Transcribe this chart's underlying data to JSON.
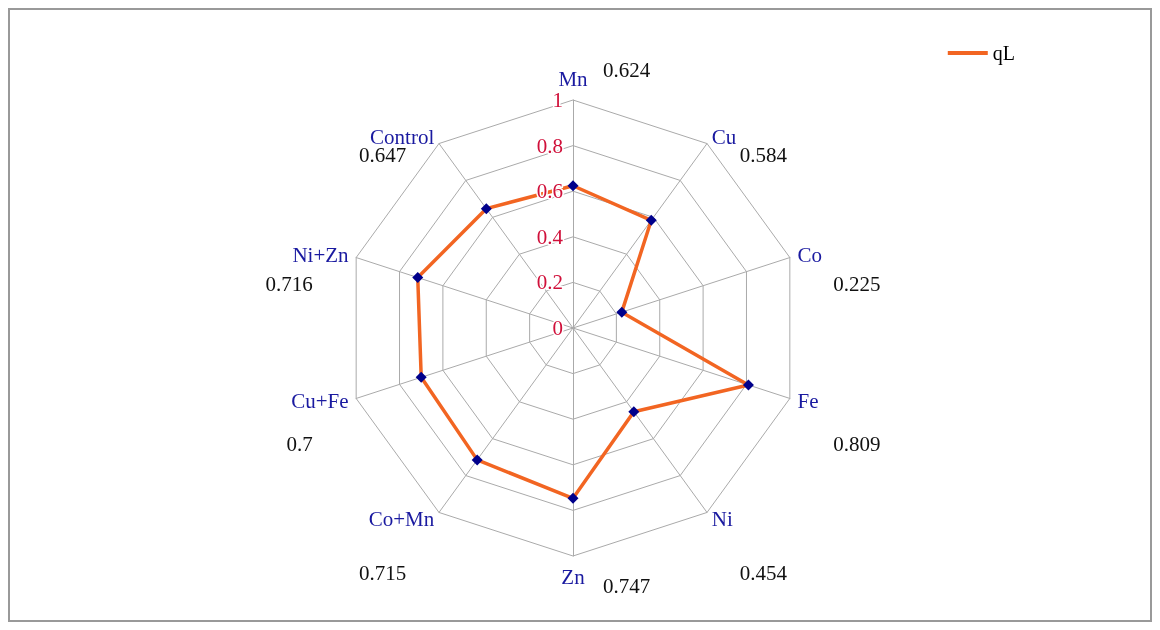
{
  "chart_data": {
    "type": "radar",
    "categories": [
      "Mn",
      "Cu",
      "Co",
      "Fe",
      "Ni",
      "Zn",
      "Co+Mn",
      "Cu+Fe",
      "Ni+Zn",
      "Control"
    ],
    "series": [
      {
        "name": "qL",
        "color": "#f26522",
        "values": [
          0.624,
          0.584,
          0.225,
          0.809,
          0.454,
          0.747,
          0.715,
          0.7,
          0.716,
          0.647
        ]
      }
    ],
    "ylim": [
      0,
      1
    ],
    "yticks": [
      0,
      0.2,
      0.4,
      0.6,
      0.8,
      1
    ],
    "value_labels": [
      "0.624",
      "0.584",
      "0.225",
      "0.809",
      "0.454",
      "0.747",
      "0.715",
      "0.7",
      "0.716",
      "0.647"
    ],
    "legend": "top right",
    "marker": "diamond",
    "line_style": "solid",
    "grid": true
  }
}
